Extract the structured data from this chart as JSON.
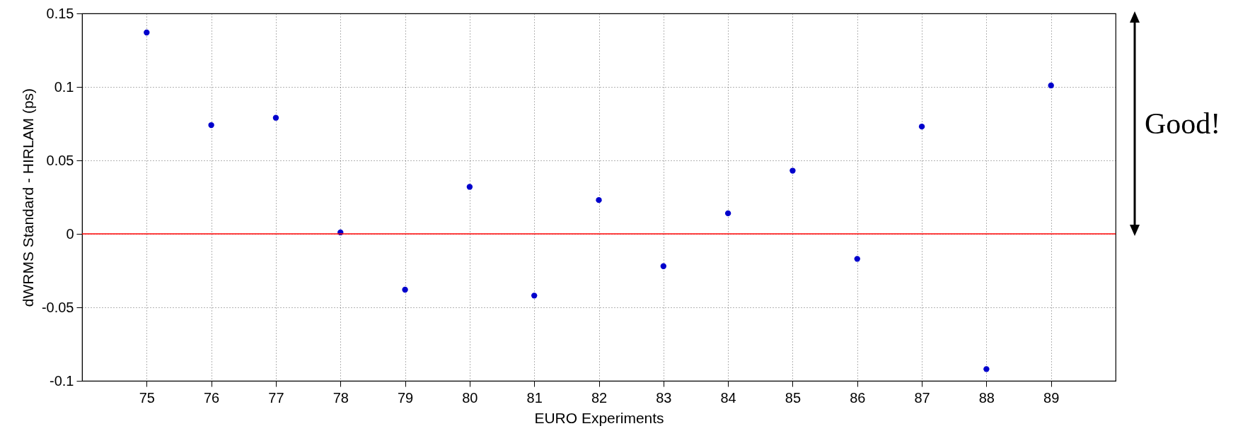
{
  "chart_data": {
    "type": "scatter",
    "xlabel": "EURO Experiments",
    "ylabel": "dWRMS Standard - HIRLAM (ps)",
    "x": [
      75,
      76,
      77,
      78,
      79,
      80,
      81,
      82,
      83,
      84,
      85,
      86,
      87,
      88,
      89
    ],
    "series": [
      {
        "color": "#0000cc",
        "values": [
          0.137,
          0.074,
          0.079,
          0.001,
          -0.038,
          0.032,
          -0.042,
          0.023,
          -0.022,
          0.014,
          0.043,
          -0.017,
          0.073,
          -0.092,
          0.101
        ]
      }
    ],
    "xlim": [
      74,
      90
    ],
    "xticks": [
      75,
      76,
      77,
      78,
      79,
      80,
      81,
      82,
      83,
      84,
      85,
      86,
      87,
      88,
      89
    ],
    "ylim": [
      -0.1,
      0.15
    ],
    "yticks": [
      -0.1,
      -0.05,
      0,
      0.05,
      0.1,
      0.15
    ],
    "ref_lines": [
      {
        "axis": "y",
        "value": 0,
        "color": "#ff0000"
      }
    ],
    "annotations": [
      "Good!"
    ],
    "grid": true,
    "marker": "circle",
    "legend": false
  }
}
